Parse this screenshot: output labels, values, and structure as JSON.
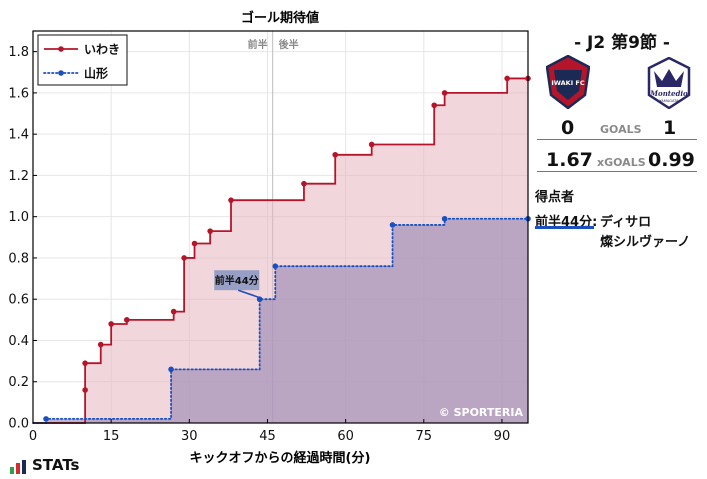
{
  "chart_data": {
    "type": "line",
    "title": "ゴール期待値",
    "xlabel": "キックオフからの経過時間(分)",
    "ylabel": "",
    "xlim": [
      0,
      95
    ],
    "ylim": [
      0,
      1.9
    ],
    "xticks": [
      0,
      15,
      30,
      45,
      60,
      75,
      90
    ],
    "yticks": [
      0.0,
      0.2,
      0.4,
      0.6,
      0.8,
      1.0,
      1.2,
      1.4,
      1.6,
      1.8
    ],
    "half_line": 46,
    "half_labels": [
      "前半",
      "後半"
    ],
    "legend_position": "top-left",
    "grid": true,
    "watermark": "© SPORTERIA",
    "series": [
      {
        "name": "いわき",
        "color": "#b5152b",
        "fill": "#e5b6be",
        "line_style": "solid",
        "x": [
          10,
          10,
          13,
          15,
          18,
          27,
          29,
          31,
          34,
          38,
          52,
          58,
          65,
          77,
          79,
          91,
          95
        ],
        "y": [
          0.16,
          0.29,
          0.38,
          0.48,
          0.5,
          0.54,
          0.8,
          0.87,
          0.93,
          1.08,
          1.16,
          1.3,
          1.35,
          1.54,
          1.6,
          1.67,
          1.67
        ]
      },
      {
        "name": "山形",
        "color": "#1a4fc0",
        "fill": "#a391b9",
        "line_style": "dotted",
        "x": [
          2.5,
          26.5,
          43.5,
          46.5,
          69,
          79,
          95
        ],
        "y": [
          0.02,
          0.26,
          0.6,
          0.76,
          0.96,
          0.99,
          0.99
        ]
      }
    ],
    "annotations": [
      {
        "label": "前半44分",
        "x": 44,
        "y": 0.6,
        "series": "山形"
      }
    ]
  },
  "match": {
    "title": "- J2 第9節 -",
    "home_logo_text": "IWAKI FC",
    "away_logo_text": "Montedio",
    "away_logo_sub": "YAMAGATA",
    "home_goals": "0",
    "away_goals": "1",
    "goals_label": "GOALS",
    "home_xg": "1.67",
    "away_xg": "0.99",
    "xg_label": "xGOALS"
  },
  "scorers": {
    "heading": "得点者",
    "entries": [
      {
        "time": "前半44分:",
        "name": "ディサロ",
        "name2": "燦シルヴァーノ",
        "color": "#1a4fc0"
      }
    ]
  },
  "brand": {
    "name": "STATs"
  }
}
